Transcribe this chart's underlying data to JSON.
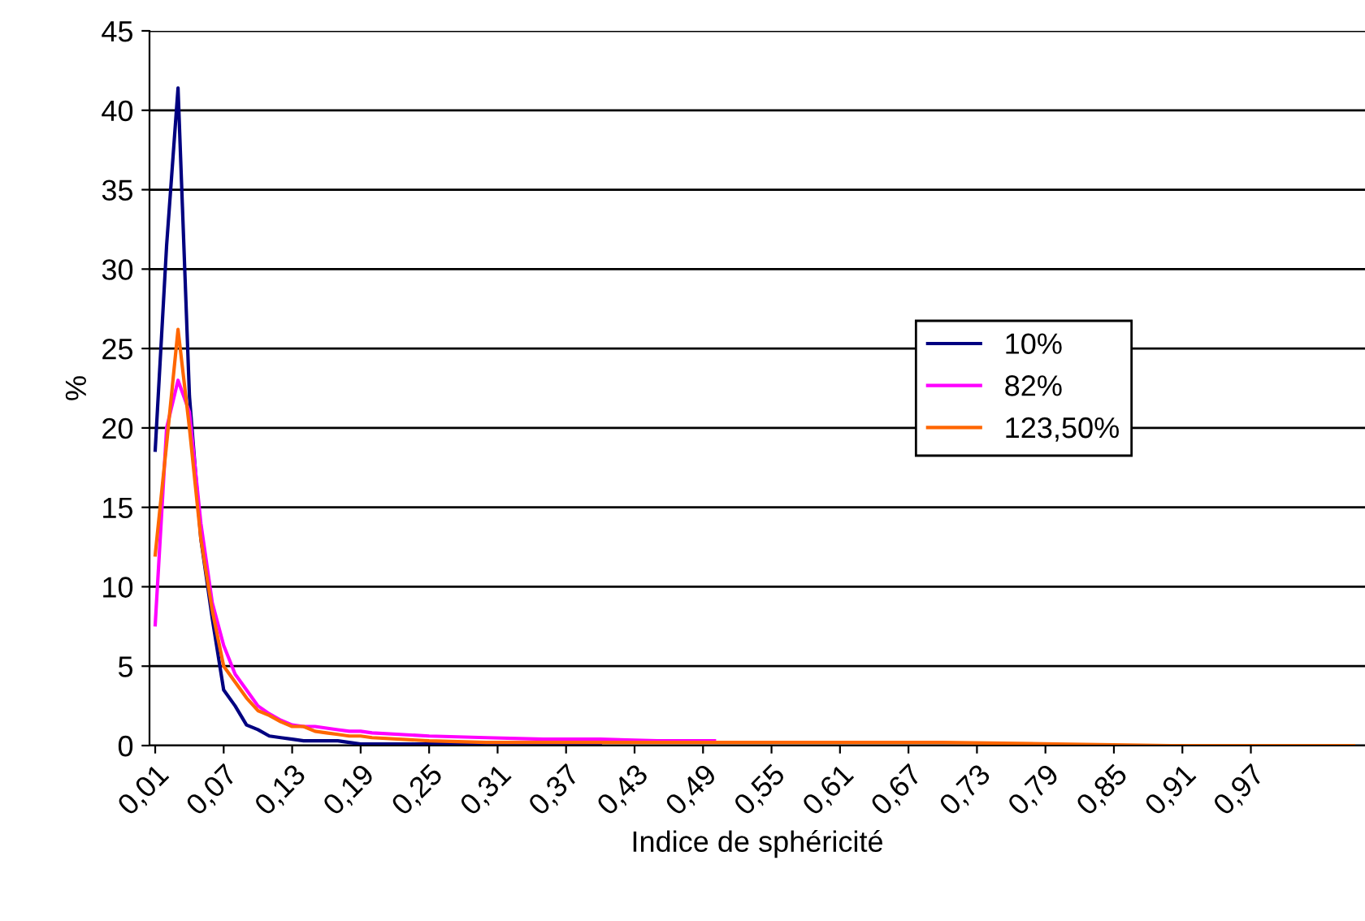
{
  "chart_data": {
    "type": "line",
    "xlabel": "Indice de sphéricité",
    "ylabel": "%",
    "x": [
      0.01,
      0.02,
      0.03,
      0.04,
      0.05,
      0.06,
      0.07,
      0.08,
      0.09,
      0.1,
      0.11,
      0.12,
      0.13,
      0.14,
      0.15,
      0.16,
      0.17,
      0.18,
      0.19,
      0.2,
      0.25,
      0.3,
      0.35,
      0.4,
      0.45,
      0.5,
      0.55,
      0.6,
      0.7,
      0.8,
      0.9,
      1.0,
      1.06
    ],
    "series": [
      {
        "name": "10%",
        "color": "#000080",
        "values": [
          18.6,
          31.5,
          41.4,
          22,
          13,
          8,
          3.5,
          2.5,
          1.3,
          1.0,
          0.6,
          0.5,
          0.4,
          0.3,
          0.3,
          0.3,
          0.3,
          0.2,
          0.1,
          0.1,
          0.1,
          0.1,
          0,
          0,
          null,
          null,
          null,
          null,
          null,
          null,
          null,
          null,
          null
        ]
      },
      {
        "name": "82%",
        "color": "#ff00ff",
        "values": [
          7.6,
          20,
          23,
          21,
          14,
          9,
          6.3,
          4.5,
          3.5,
          2.5,
          2.0,
          1.6,
          1.3,
          1.2,
          1.2,
          1.1,
          1.0,
          0.9,
          0.9,
          0.8,
          0.6,
          0.5,
          0.4,
          0.4,
          0.3,
          0.3,
          null,
          null,
          null,
          null,
          null,
          null,
          null
        ]
      },
      {
        "name": "123,50%",
        "color": "#ff6600",
        "values": [
          12,
          19,
          26.2,
          20,
          13,
          8.5,
          5,
          4,
          3,
          2.2,
          1.9,
          1.5,
          1.2,
          1.2,
          0.9,
          0.8,
          0.7,
          0.6,
          0.6,
          0.5,
          0.3,
          0.2,
          0.2,
          0.2,
          0.2,
          0.2,
          0.2,
          0.2,
          0.2,
          0.1,
          0,
          0,
          0
        ]
      }
    ],
    "xlim": [
      0.005,
      1.07
    ],
    "xticks": [
      {
        "value": 0.01,
        "label": "0,01"
      },
      {
        "value": 0.07,
        "label": "0,07"
      },
      {
        "value": 0.13,
        "label": "0,13"
      },
      {
        "value": 0.19,
        "label": "0,19"
      },
      {
        "value": 0.25,
        "label": "0,25"
      },
      {
        "value": 0.31,
        "label": "0,31"
      },
      {
        "value": 0.37,
        "label": "0,37"
      },
      {
        "value": 0.43,
        "label": "0,43"
      },
      {
        "value": 0.49,
        "label": "0,49"
      },
      {
        "value": 0.55,
        "label": "0,55"
      },
      {
        "value": 0.61,
        "label": "0,61"
      },
      {
        "value": 0.67,
        "label": "0,67"
      },
      {
        "value": 0.73,
        "label": "0,73"
      },
      {
        "value": 0.79,
        "label": "0,79"
      },
      {
        "value": 0.85,
        "label": "0,85"
      },
      {
        "value": 0.91,
        "label": "0,91"
      },
      {
        "value": 0.97,
        "label": "0,97"
      }
    ],
    "ylim": [
      0,
      45
    ],
    "yticks": [
      0,
      5,
      10,
      15,
      20,
      25,
      30,
      35,
      40,
      45
    ],
    "grid": "y",
    "legend": "center right",
    "marker": "none",
    "line_style": "solid"
  }
}
